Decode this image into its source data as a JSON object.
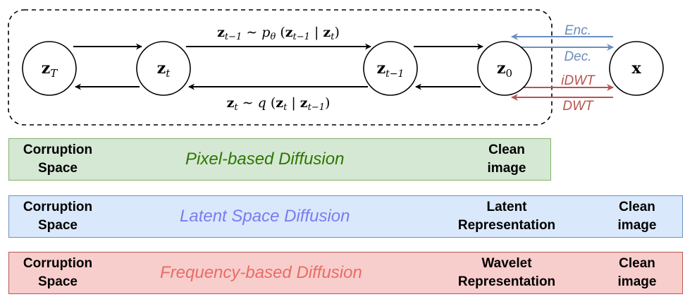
{
  "nodes": {
    "zT": {
      "main": "z",
      "sub": "T"
    },
    "zt": {
      "main": "z",
      "sub": "t"
    },
    "zt1": {
      "main": "z",
      "sub": "t−1"
    },
    "z0": {
      "main": "z",
      "sub": "0"
    },
    "x": {
      "main": "x"
    }
  },
  "equations": {
    "reverse": {
      "lhs_main": "z",
      "lhs_sub": "t−1",
      "rel": " ∼ ",
      "fn": "p",
      "fn_sub": "θ",
      "open": " (",
      "a_main": "z",
      "a_sub": "t−1",
      "bar": " | ",
      "b_main": "z",
      "b_sub": "t",
      "close": ")"
    },
    "forward": {
      "lhs_main": "z",
      "lhs_sub": "t",
      "rel": " ∼ ",
      "fn": "q",
      "open": " (",
      "a_main": "z",
      "a_sub": "t",
      "bar": " | ",
      "b_main": "z",
      "b_sub": "t−1",
      "close": ")"
    }
  },
  "transforms": {
    "enc": "Enc.",
    "dec": "Dec.",
    "idwt": "iDWT",
    "dwt": "DWT"
  },
  "colors": {
    "enc_dec": "#6c8ebf",
    "wavelet": "#b85450",
    "pixel_fill": "#d5e8d4",
    "pixel_border": "#82b366",
    "pixel_text": "#2d7600",
    "latent_fill": "#dae8fc",
    "latent_border": "#6c8ebf",
    "latent_text": "#7b7bf0",
    "freq_fill": "#f8cecc",
    "freq_border": "#b85450",
    "freq_text": "#ea6b66"
  },
  "rows": {
    "pixel": {
      "title": "Pixel-based Diffusion",
      "left_line1": "Corruption",
      "left_line2": "Space",
      "right_line1": "Clean",
      "right_line2": "image"
    },
    "latent": {
      "title": "Latent Space Diffusion",
      "left_line1": "Corruption",
      "left_line2": "Space",
      "mid_line1": "Latent",
      "mid_line2": "Representation",
      "right_line1": "Clean",
      "right_line2": "image"
    },
    "frequency": {
      "title": "Frequency-based Diffusion",
      "left_line1": "Corruption",
      "left_line2": "Space",
      "mid_line1": "Wavelet",
      "mid_line2": "Representation",
      "right_line1": "Clean",
      "right_line2": "image"
    }
  }
}
